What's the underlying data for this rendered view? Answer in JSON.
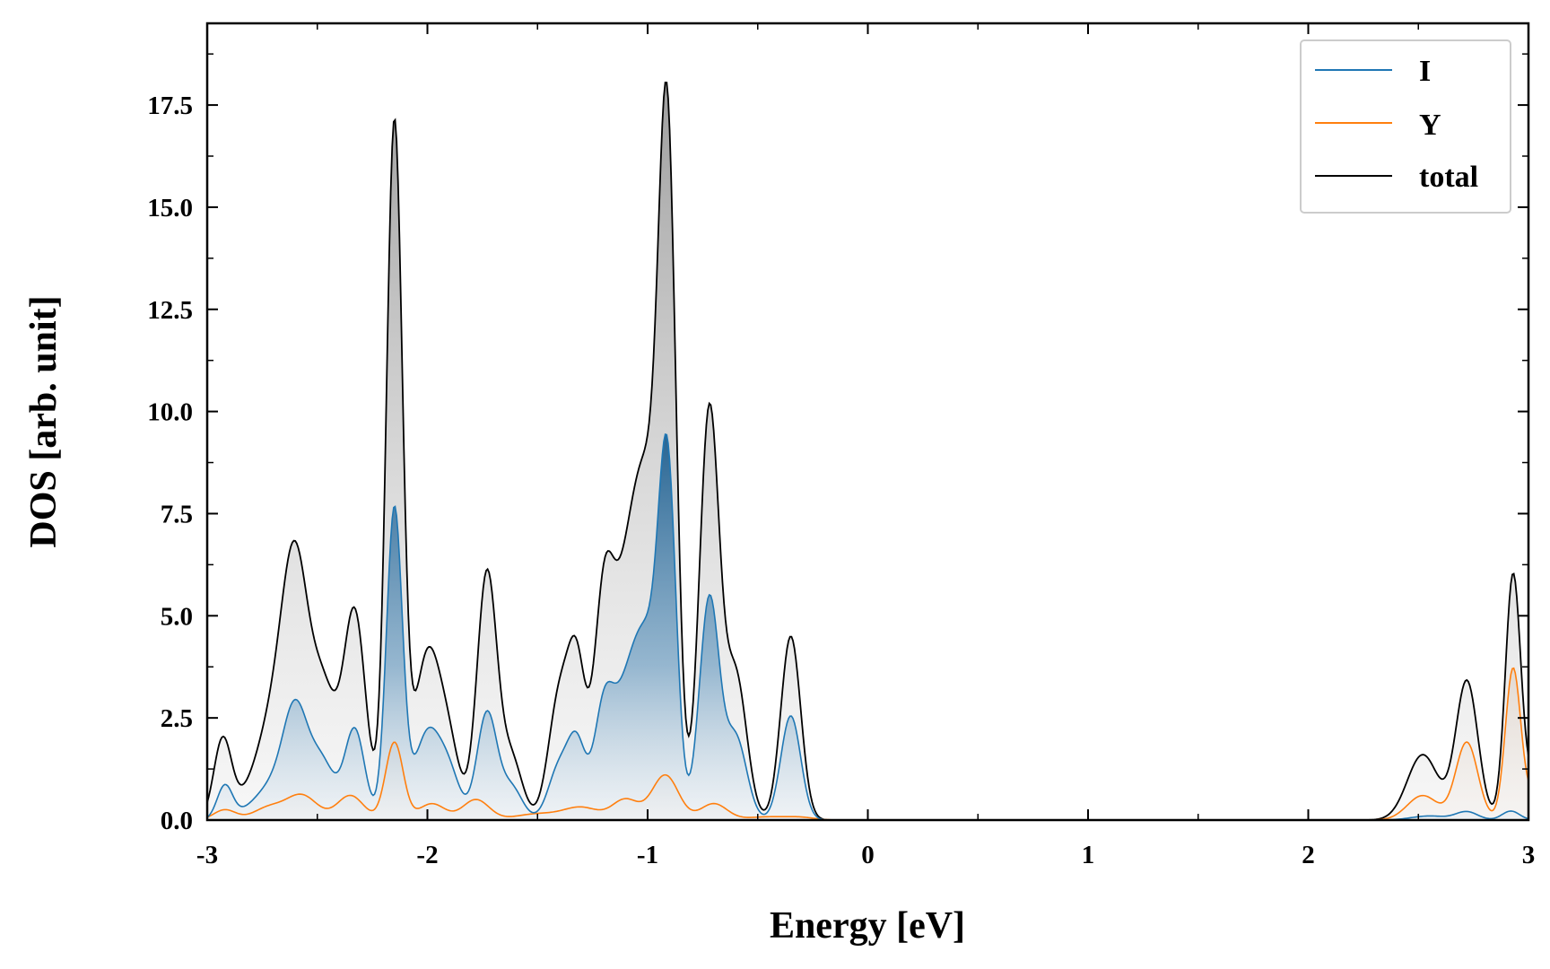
{
  "chart_data": {
    "type": "area",
    "title": "",
    "xlabel": "Energy [eV]",
    "ylabel": "DOS [arb. unit]",
    "xlim": [
      -3,
      3
    ],
    "ylim": [
      0,
      19.5
    ],
    "xticks": [
      -3,
      -2,
      -1,
      0,
      1,
      2,
      3
    ],
    "xtick_labels": [
      "-3",
      "-2",
      "-1",
      "0",
      "1",
      "2",
      "3"
    ],
    "yticks": [
      0,
      2.5,
      5,
      7.5,
      10,
      12.5,
      15,
      17.5
    ],
    "ytick_labels": [
      "0.0",
      "2.5",
      "5.0",
      "7.5",
      "10.0",
      "12.5",
      "15.0",
      "17.5"
    ],
    "legend_position": "top-right",
    "grid": false,
    "series": [
      {
        "name": "I",
        "color": "#1f77b4",
        "fill": true,
        "peaks": [
          [
            -2.92,
            0.8,
            0.035
          ],
          [
            -2.8,
            0.2,
            0.08
          ],
          [
            -2.7,
            0.7,
            0.07
          ],
          [
            -2.6,
            2.5,
            0.055
          ],
          [
            -2.48,
            1.4,
            0.06
          ],
          [
            -2.33,
            2.2,
            0.045
          ],
          [
            -2.15,
            7.6,
            0.036
          ],
          [
            -2.0,
            2.1,
            0.06
          ],
          [
            -1.9,
            1.0,
            0.05
          ],
          [
            -1.73,
            2.6,
            0.045
          ],
          [
            -1.62,
            0.8,
            0.05
          ],
          [
            -1.4,
            1.3,
            0.05
          ],
          [
            -1.32,
            1.7,
            0.04
          ],
          [
            -1.2,
            2.5,
            0.045
          ],
          [
            -1.1,
            2.6,
            0.06
          ],
          [
            -1.0,
            3.8,
            0.06
          ],
          [
            -0.91,
            8.1,
            0.04
          ],
          [
            -0.72,
            5.4,
            0.045
          ],
          [
            -0.6,
            2.0,
            0.05
          ],
          [
            -0.35,
            2.55,
            0.045
          ],
          [
            2.55,
            0.1,
            0.08
          ],
          [
            2.72,
            0.2,
            0.05
          ],
          [
            2.92,
            0.22,
            0.04
          ]
        ]
      },
      {
        "name": "Y",
        "color": "#ff7f0e",
        "fill": true,
        "peaks": [
          [
            -2.92,
            0.25,
            0.05
          ],
          [
            -2.72,
            0.3,
            0.07
          ],
          [
            -2.57,
            0.6,
            0.07
          ],
          [
            -2.35,
            0.6,
            0.06
          ],
          [
            -2.15,
            1.9,
            0.04
          ],
          [
            -1.98,
            0.4,
            0.06
          ],
          [
            -1.78,
            0.5,
            0.06
          ],
          [
            -1.5,
            0.15,
            0.1
          ],
          [
            -1.3,
            0.3,
            0.08
          ],
          [
            -1.1,
            0.5,
            0.06
          ],
          [
            -0.92,
            1.1,
            0.06
          ],
          [
            -0.7,
            0.4,
            0.06
          ],
          [
            -0.45,
            0.08,
            0.1
          ],
          [
            -0.3,
            0.05,
            0.06
          ],
          [
            2.52,
            0.6,
            0.07
          ],
          [
            2.72,
            1.9,
            0.05
          ],
          [
            2.93,
            3.7,
            0.035
          ],
          [
            3.03,
            0.6,
            0.04
          ]
        ]
      },
      {
        "name": "total",
        "color": "#000000",
        "fill": true,
        "peaks": [
          [
            -2.93,
            1.9,
            0.04
          ],
          [
            -2.8,
            0.5,
            0.08
          ],
          [
            -2.7,
            2.0,
            0.07
          ],
          [
            -2.6,
            5.8,
            0.06
          ],
          [
            -2.47,
            3.0,
            0.06
          ],
          [
            -2.33,
            5.0,
            0.05
          ],
          [
            -2.15,
            17.0,
            0.036
          ],
          [
            -2.0,
            4.0,
            0.06
          ],
          [
            -1.9,
            1.5,
            0.05
          ],
          [
            -1.73,
            6.0,
            0.045
          ],
          [
            -1.62,
            1.5,
            0.05
          ],
          [
            -1.4,
            3.0,
            0.05
          ],
          [
            -1.32,
            3.4,
            0.04
          ],
          [
            -1.2,
            5.0,
            0.045
          ],
          [
            -1.1,
            4.8,
            0.06
          ],
          [
            -1.0,
            7.0,
            0.06
          ],
          [
            -0.91,
            15.6,
            0.04
          ],
          [
            -0.72,
            10.0,
            0.045
          ],
          [
            -0.6,
            3.5,
            0.05
          ],
          [
            -0.35,
            4.5,
            0.045
          ],
          [
            2.52,
            1.6,
            0.07
          ],
          [
            2.72,
            3.4,
            0.05
          ],
          [
            2.93,
            6.0,
            0.035
          ],
          [
            3.03,
            1.0,
            0.04
          ]
        ]
      }
    ]
  }
}
